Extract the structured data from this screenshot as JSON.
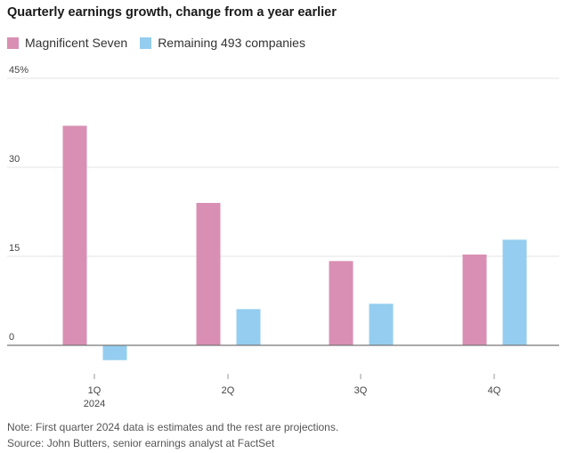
{
  "colors": {
    "magnificent": "#d98fb3",
    "remaining": "#94cdef"
  },
  "chart_data": {
    "type": "bar",
    "title": "Quarterly earnings growth, change from a year earlier",
    "categories": [
      "1Q",
      "2Q",
      "3Q",
      "4Q"
    ],
    "category_sublabels": [
      "2024",
      "",
      "",
      ""
    ],
    "series": [
      {
        "name": "Magnificent Seven",
        "values": [
          37,
          24,
          14.2,
          15.3
        ]
      },
      {
        "name": "Remaining 493 companies",
        "values": [
          -2.5,
          6.1,
          7,
          17.8
        ]
      }
    ],
    "yticks": [
      {
        "value": 45,
        "label": "45%"
      },
      {
        "value": 30,
        "label": "30"
      },
      {
        "value": 15,
        "label": "15"
      },
      {
        "value": 0,
        "label": "0"
      }
    ],
    "ylim": [
      -3,
      45
    ],
    "grid": true,
    "legend": "top-left"
  },
  "notes": {
    "note": "Note: First quarter 2024 data is estimates and the rest are projections.",
    "source": "Source: John Butters, senior earnings analyst at FactSet"
  }
}
